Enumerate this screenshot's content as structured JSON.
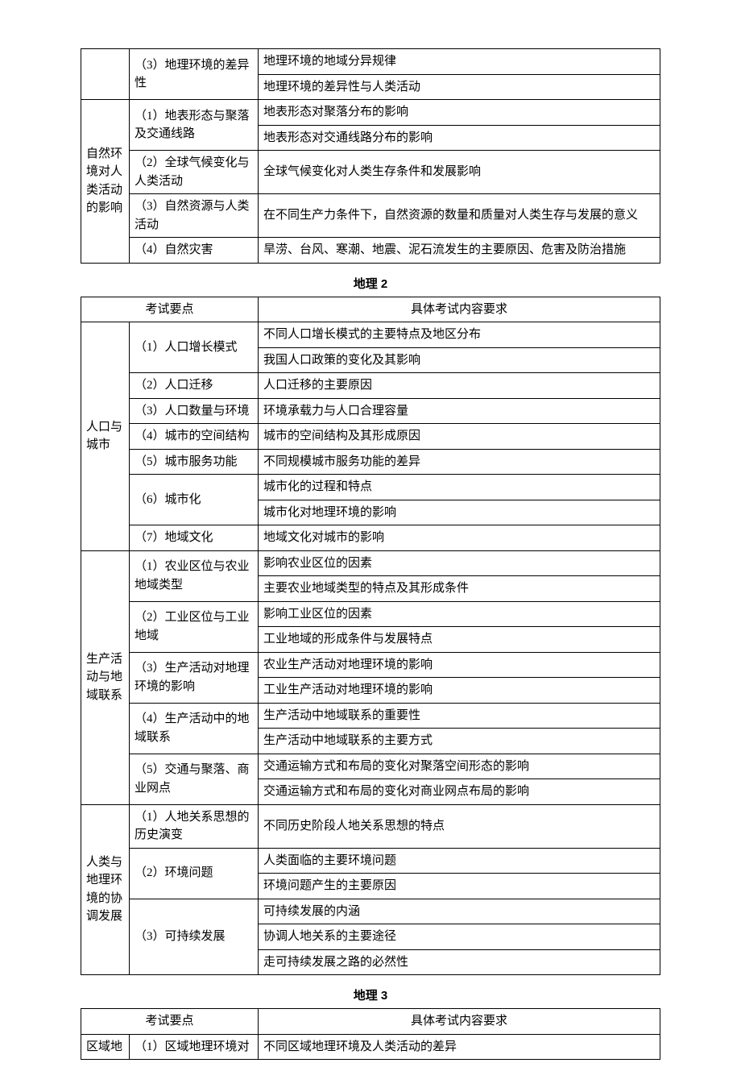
{
  "table1": {
    "rows": [
      {
        "cat": null,
        "topic": "（3）地理环境的差异性",
        "detail": [
          "地理环境的地域分异规律",
          "地理环境的差异性与人类活动"
        ]
      },
      {
        "cat": "自然环境对人类活动的影响",
        "cat_rowspan": 5,
        "items": [
          {
            "topic": "（1）地表形态与聚落及交通线路",
            "detail": [
              "地表形态对聚落分布的影响",
              "地表形态对交通线路分布的影响"
            ]
          },
          {
            "topic": "（2）全球气候变化与人类活动",
            "detail": [
              "全球气候变化对人类生存条件和发展影响"
            ]
          },
          {
            "topic": "（3）自然资源与人类活动",
            "detail": [
              "在不同生产力条件下，自然资源的数量和质量对人类生存与发展的意义"
            ]
          },
          {
            "topic": "（4）自然灾害",
            "detail": [
              "旱涝、台风、寒潮、地震、泥石流发生的主要原因、危害及防治措施"
            ]
          }
        ]
      }
    ]
  },
  "table2": {
    "title": "地理 2",
    "header": {
      "left": "考试要点",
      "right": "具体考试内容要求"
    },
    "groups": [
      {
        "cat": "人口与城市",
        "items": [
          {
            "topic": "（1）人口增长模式",
            "detail": [
              "不同人口增长模式的主要特点及地区分布",
              "我国人口政策的变化及其影响"
            ]
          },
          {
            "topic": "（2）人口迁移",
            "detail": [
              "人口迁移的主要原因"
            ]
          },
          {
            "topic": "（3）人口数量与环境",
            "detail": [
              "环境承载力与人口合理容量"
            ]
          },
          {
            "topic": "（4）城市的空间结构",
            "detail": [
              "城市的空间结构及其形成原因"
            ]
          },
          {
            "topic": "（5）城市服务功能",
            "detail": [
              "不同规模城市服务功能的差异"
            ]
          },
          {
            "topic": "（6）城市化",
            "detail": [
              "城市化的过程和特点",
              "城市化对地理环境的影响"
            ]
          },
          {
            "topic": "（7）地域文化",
            "detail": [
              "地域文化对城市的影响"
            ]
          }
        ]
      },
      {
        "cat": "生产活动与地域联系",
        "items": [
          {
            "topic": "（1）农业区位与农业地域类型",
            "detail": [
              "影响农业区位的因素",
              "主要农业地域类型的特点及其形成条件"
            ]
          },
          {
            "topic": "（2）工业区位与工业地域",
            "detail": [
              "影响工业区位的因素",
              "工业地域的形成条件与发展特点"
            ]
          },
          {
            "topic": "（3）生产活动对地理环境的影响",
            "detail": [
              "农业生产活动对地理环境的影响",
              "工业生产活动对地理环境的影响"
            ]
          },
          {
            "topic": "（4）生产活动中的地域联系",
            "detail": [
              "生产活动中地域联系的重要性",
              "生产活动中地域联系的主要方式"
            ]
          },
          {
            "topic": "（5）交通与聚落、商业网点",
            "detail": [
              "交通运输方式和布局的变化对聚落空间形态的影响",
              "交通运输方式和布局的变化对商业网点布局的影响"
            ]
          }
        ]
      },
      {
        "cat": "人类与地理环境的协调发展",
        "items": [
          {
            "topic": "（1）人地关系思想的历史演变",
            "detail": [
              "不同历史阶段人地关系思想的特点"
            ]
          },
          {
            "topic": "（2）环境问题",
            "detail": [
              "人类面临的主要环境问题",
              "环境问题产生的主要原因"
            ]
          },
          {
            "topic": "（3）可持续发展",
            "detail": [
              "可持续发展的内涵",
              "协调人地关系的主要途径",
              "走可持续发展之路的必然性"
            ]
          }
        ]
      }
    ]
  },
  "table3": {
    "title": "地理 3",
    "header": {
      "left": "考试要点",
      "right": "具体考试内容要求"
    },
    "row": {
      "cat": "区域地",
      "topic": "（1）区域地理环境对",
      "detail": "不同区域地理环境及人类活动的差异"
    }
  }
}
